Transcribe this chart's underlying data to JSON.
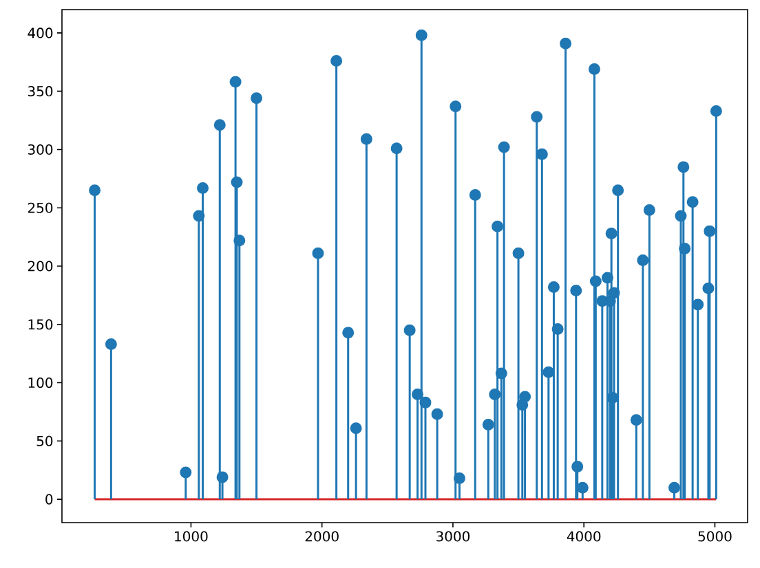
{
  "chart_data": {
    "type": "lollipop",
    "color": "#1f77b4",
    "marker": "circle",
    "x": [
      265,
      390,
      960,
      1060,
      1090,
      1220,
      1240,
      1340,
      1350,
      1370,
      1500,
      1970,
      2110,
      2200,
      2260,
      2340,
      2570,
      2670,
      2730,
      2760,
      2790,
      2880,
      3020,
      3050,
      3170,
      3270,
      3320,
      3340,
      3370,
      3390,
      3500,
      3530,
      3550,
      3640,
      3680,
      3730,
      3770,
      3800,
      3860,
      3940,
      3950,
      3990,
      4080,
      4090,
      4140,
      4180,
      4200,
      4210,
      4220,
      4230,
      4260,
      4400,
      4450,
      4500,
      4690,
      4740,
      4760,
      4770,
      4830,
      4870,
      4950,
      4960,
      5010
    ],
    "values": [
      265,
      133,
      23,
      243,
      267,
      321,
      19,
      358,
      272,
      222,
      344,
      211,
      376,
      143,
      61,
      309,
      301,
      145,
      90,
      398,
      83,
      73,
      337,
      18,
      261,
      64,
      90,
      234,
      108,
      302,
      211,
      81,
      88,
      328,
      296,
      109,
      182,
      146,
      391,
      179,
      28,
      10,
      369,
      187,
      170,
      190,
      170,
      228,
      87,
      177,
      265,
      68,
      205,
      248,
      10,
      243,
      285,
      215,
      255,
      167,
      181,
      230,
      333
    ],
    "ref_lines": [
      {
        "axis": "y",
        "value": 0,
        "color": "#d62728"
      }
    ],
    "xlim": [
      15,
      5250
    ],
    "ylim": [
      -20,
      420
    ],
    "xticks": [
      1000,
      2000,
      3000,
      4000,
      5000
    ],
    "yticks": [
      0,
      50,
      100,
      150,
      200,
      250,
      300,
      350,
      400
    ]
  }
}
